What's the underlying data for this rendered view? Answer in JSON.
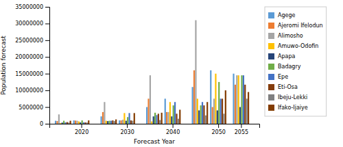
{
  "chart_data": {
    "type": "bar",
    "x": [
      2016,
      2020,
      2026,
      2030,
      2036,
      2040,
      2046,
      2050,
      2055
    ],
    "series": [
      {
        "name": "Agege",
        "color": "#5B9BD5",
        "values": [
          900000,
          1000000,
          2200000,
          1000000,
          5000000,
          7500000,
          11000000,
          16000000,
          15000000
        ]
      },
      {
        "name": "Ajeromi Ifelodun",
        "color": "#ED7D31",
        "values": [
          800000,
          950000,
          3500000,
          1000000,
          7500000,
          3500000,
          16000000,
          5000000,
          11700000
        ]
      },
      {
        "name": "Alimosho",
        "color": "#A5A5A5",
        "values": [
          2800000,
          900000,
          6500000,
          1200000,
          14500000,
          3500000,
          31000000,
          7500000,
          14500000
        ]
      },
      {
        "name": "Amuwo-Odofin",
        "color": "#FFC000",
        "values": [
          200000,
          700000,
          900000,
          3200000,
          700000,
          6500000,
          7500000,
          15000000,
          14500000
        ]
      },
      {
        "name": "Apapa",
        "color": "#264478",
        "values": [
          350000,
          400000,
          800000,
          900000,
          2200000,
          2200000,
          4000000,
          4000000,
          5000000
        ]
      },
      {
        "name": "Badagry",
        "color": "#70AD47",
        "values": [
          900000,
          1000000,
          900000,
          2000000,
          3300000,
          5500000,
          5500000,
          12500000,
          14500000
        ]
      },
      {
        "name": "Epe",
        "color": "#4472C4",
        "values": [
          400000,
          400000,
          900000,
          3200000,
          2600000,
          6500000,
          6500000,
          7500000,
          14500000
        ]
      },
      {
        "name": "Eti-Osa",
        "color": "#843C0C",
        "values": [
          500000,
          400000,
          1000000,
          1000000,
          3000000,
          3000000,
          5500000,
          7500000,
          11700000
        ]
      },
      {
        "name": "Ibeju-Lekki",
        "color": "#808080",
        "values": [
          350000,
          350000,
          800000,
          900000,
          1100000,
          1500000,
          2500000,
          3000000,
          7500000
        ]
      },
      {
        "name": "Ifako-Ijaiye",
        "color": "#833C00",
        "values": [
          900000,
          1000000,
          1300000,
          3200000,
          3300000,
          4200000,
          6500000,
          10000000,
          9500000
        ]
      }
    ],
    "xlabel": "Forecast Year",
    "ylabel": "Population forecast",
    "xlim": [
      2013,
      2059
    ],
    "xticks": [
      2020,
      2030,
      2040,
      2050,
      2055
    ],
    "ylim": [
      0,
      35000000
    ],
    "yticks": [
      0,
      5000000,
      10000000,
      15000000,
      20000000,
      25000000,
      30000000,
      35000000
    ],
    "legend": "right"
  }
}
